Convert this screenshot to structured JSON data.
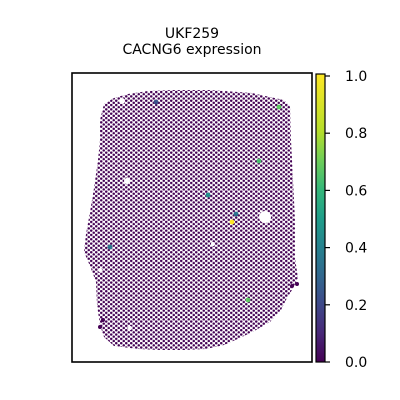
{
  "chart_data": {
    "type": "scatter",
    "title": "UKF259",
    "subtitle": "CACNG6 expression",
    "xlabel": "",
    "ylabel": "",
    "grid": false,
    "colorbar": {
      "colormap": "viridis",
      "range": [
        0.0,
        1.0
      ],
      "tick_labels": [
        "0.0",
        "0.2",
        "0.4",
        "0.6",
        "0.8",
        "1.0"
      ],
      "placement": "right"
    },
    "background_value": 0.0,
    "background_color": "#440154",
    "highlighted_spots": [
      {
        "value": 0.35,
        "color": "#3b528b"
      },
      {
        "value": 0.75,
        "color": "#5ec962"
      },
      {
        "value": 0.7,
        "color": "#48c16e"
      },
      {
        "value": 0.55,
        "color": "#21918c"
      },
      {
        "value": 1.0,
        "color": "#fde725"
      },
      {
        "value": 0.5,
        "color": "#2a788e"
      },
      {
        "value": 0.75,
        "color": "#5ec962"
      },
      {
        "value": 0.45,
        "color": "#2c728e"
      }
    ]
  }
}
